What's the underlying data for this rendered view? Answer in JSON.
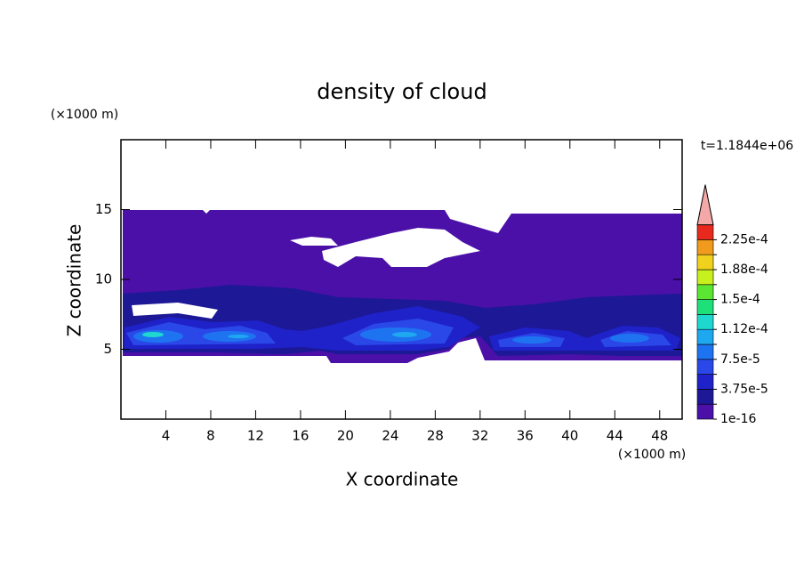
{
  "chart_data": {
    "type": "contour",
    "title": "density of cloud",
    "x_label": "X coordinate",
    "y_label": "Z coordinate",
    "x_unit": "(×1000 m)",
    "y_unit": "(×1000 m)",
    "annotation": "t=1.1844e+06",
    "xlim": [
      0,
      50
    ],
    "ylim": [
      0,
      20
    ],
    "xticks": [
      4,
      8,
      12,
      16,
      20,
      24,
      28,
      32,
      36,
      40,
      44,
      48
    ],
    "yticks": [
      5,
      10,
      15
    ],
    "colorbar": {
      "levels": [
        1e-16,
        1.875e-05,
        3.75e-05,
        5.625e-05,
        7.5e-05,
        9.375e-05,
        0.0001125,
        0.00013125,
        0.00015,
        0.00016875,
        0.0001875,
        0.00020625,
        0.000225
      ],
      "level_labels": [
        "1e-16",
        null,
        "3.75e-5",
        null,
        "7.5e-5",
        null,
        "1.12e-4",
        null,
        "1.5e-4",
        null,
        "1.88e-4",
        null,
        "2.25e-4"
      ],
      "colors": [
        "#4a10a8",
        "#1c1896",
        "#1e22c8",
        "#2a48e8",
        "#1e74f0",
        "#1ea8f0",
        "#1ed8d0",
        "#1ee078",
        "#5ae632",
        "#c8f01e",
        "#f0d21e",
        "#f09a1e",
        "#e82a1e"
      ],
      "extend_color": "#f4a8a8"
    }
  }
}
